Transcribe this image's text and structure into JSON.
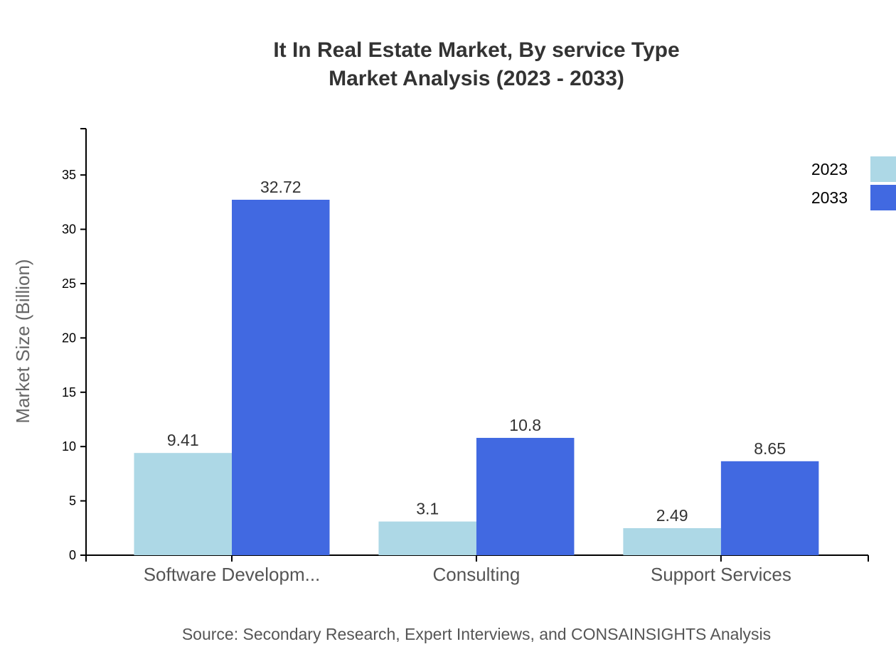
{
  "chart_data": {
    "type": "bar",
    "title": "It In Real Estate Market, By service Type",
    "subtitle": "Market Analysis (2023 - 2033)",
    "xlabel": "",
    "ylabel": "Market Size (Billion)",
    "categories": [
      "Software Developm...",
      "Consulting",
      "Support Services"
    ],
    "series": [
      {
        "name": "2023",
        "values": [
          9.41,
          3.1,
          2.49
        ],
        "color": "#add8e6"
      },
      {
        "name": "2033",
        "values": [
          32.72,
          10.8,
          8.65
        ],
        "color": "#4169e1"
      }
    ],
    "ylim": [
      0,
      39.264
    ],
    "yticks": [
      0,
      5,
      10,
      15,
      20,
      25,
      30,
      35
    ],
    "grid": false,
    "legend": "top-right"
  },
  "source": "Source: Secondary Research, Expert Interviews, and CONSAINSIGHTS Analysis"
}
